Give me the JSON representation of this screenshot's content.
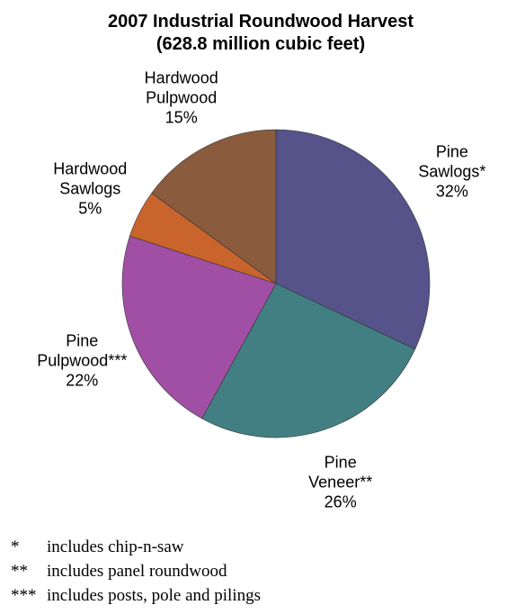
{
  "chart_data": {
    "type": "pie",
    "title": "2007 Industrial Roundwood Harvest",
    "subtitle": "(628.8 million cubic feet)",
    "slices": [
      {
        "label": [
          "Pine",
          "Sawlogs*"
        ],
        "percent_label": "32%",
        "value": 32,
        "color": "#555389"
      },
      {
        "label": [
          "Pine",
          "Veneer**"
        ],
        "percent_label": "26%",
        "value": 26,
        "color": "#427F82"
      },
      {
        "label": [
          "Pine",
          "Pulpwood***"
        ],
        "percent_label": "22%",
        "value": 22,
        "color": "#A14FA4"
      },
      {
        "label": [
          "Hardwood",
          "Sawlogs"
        ],
        "percent_label": "5%",
        "value": 5,
        "color": "#C9642D"
      },
      {
        "label": [
          "Hardwood",
          "Pulpwood"
        ],
        "percent_label": "15%",
        "value": 15,
        "color": "#8A5B3D"
      }
    ]
  },
  "footnotes": [
    {
      "mark": "*",
      "text": "includes chip-n-saw"
    },
    {
      "mark": "**",
      "text": "includes panel roundwood"
    },
    {
      "mark": "***",
      "text": "includes posts, pole and pilings"
    }
  ]
}
